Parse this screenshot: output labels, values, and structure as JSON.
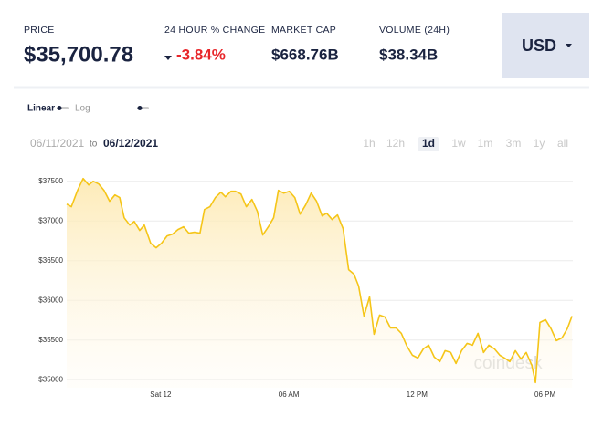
{
  "header": {
    "stats": [
      {
        "label": "PRICE",
        "value": "$35,700.78"
      },
      {
        "label": "24 HOUR % CHANGE",
        "value": "-3.84%"
      },
      {
        "label": "MARKET CAP",
        "value": "$668.76B"
      },
      {
        "label": "VOLUME (24H)",
        "value": "$38.34B"
      }
    ],
    "currency": "USD"
  },
  "controls": {
    "scales": [
      {
        "label": "Linear",
        "active": true
      },
      {
        "label": "Log",
        "active": false
      }
    ],
    "date_from": "06/11/2021",
    "date_sep": "to",
    "date_to": "06/12/2021",
    "ranges": [
      {
        "label": "1h",
        "active": false
      },
      {
        "label": "12h",
        "active": false
      },
      {
        "label": "1d",
        "active": true
      },
      {
        "label": "1w",
        "active": false
      },
      {
        "label": "1m",
        "active": false
      },
      {
        "label": "3m",
        "active": false
      },
      {
        "label": "1y",
        "active": false
      },
      {
        "label": "all",
        "active": false
      }
    ]
  },
  "chart_data": {
    "type": "line",
    "x": [
      -4.4,
      -4.18,
      -3.89,
      -3.63,
      -3.37,
      -3.16,
      -2.9,
      -2.65,
      -2.39,
      -2.14,
      -1.92,
      -1.71,
      -1.45,
      -1.24,
      -0.98,
      -0.77,
      -0.47,
      -0.21,
      0.04,
      0.3,
      0.56,
      0.81,
      1.07,
      1.32,
      1.58,
      1.84,
      2.05,
      2.31,
      2.56,
      2.82,
      3.03,
      3.29,
      3.5,
      3.76,
      4.01,
      4.27,
      4.53,
      4.78,
      5.04,
      5.29,
      5.51,
      5.76,
      6.02,
      6.28,
      6.53,
      6.79,
      7.05,
      7.3,
      7.56,
      7.77,
      8.03,
      8.28,
      8.54,
      8.8,
      9.05,
      9.27,
      9.52,
      9.78,
      9.99,
      10.25,
      10.5,
      10.76,
      11.02,
      11.27,
      11.53,
      11.79,
      12.04,
      12.3,
      12.55,
      12.81,
      13.07,
      13.32,
      13.58,
      13.83,
      14.09,
      14.35,
      14.6,
      14.86,
      15.12,
      15.37,
      15.63,
      15.88,
      16.1,
      16.35,
      16.61,
      16.87,
      17.12,
      17.38,
      17.55,
      17.76,
      18.02,
      18.28,
      18.53,
      18.79,
      19.04,
      19.26
    ],
    "series": [
      {
        "color": "#f5c518",
        "values": [
          37213,
          37179,
          37385,
          37534,
          37454,
          37500,
          37466,
          37385,
          37248,
          37328,
          37294,
          37041,
          36949,
          36995,
          36881,
          36949,
          36720,
          36663,
          36720,
          36812,
          36835,
          36892,
          36927,
          36846,
          36858,
          36846,
          37144,
          37179,
          37294,
          37362,
          37305,
          37374,
          37374,
          37339,
          37179,
          37271,
          37121,
          36823,
          36927,
          37041,
          37385,
          37351,
          37374,
          37294,
          37087,
          37202,
          37351,
          37248,
          37064,
          37098,
          37018,
          37076,
          36904,
          36387,
          36330,
          36181,
          35802,
          36043,
          35573,
          35814,
          35791,
          35653,
          35653,
          35585,
          35424,
          35309,
          35275,
          35390,
          35435,
          35286,
          35229,
          35367,
          35344,
          35206,
          35367,
          35458,
          35435,
          35585,
          35344,
          35435,
          35390,
          35309,
          35275,
          35229,
          35367,
          35263,
          35344,
          35183,
          34965,
          35722,
          35757,
          35642,
          35493,
          35527,
          35642,
          35802
        ]
      }
    ],
    "xlim": [
      -4.4,
      19.3
    ],
    "xticks": [
      {
        "value": 0,
        "label": "Sat 12"
      },
      {
        "value": 6,
        "label": "06 AM"
      },
      {
        "value": 12,
        "label": "12 PM"
      },
      {
        "value": 18,
        "label": "06 PM"
      }
    ],
    "ylim": [
      34900,
      37600
    ],
    "yticks": [
      {
        "value": 35000,
        "label": "$35000"
      },
      {
        "value": 35500,
        "label": "$35500"
      },
      {
        "value": 36000,
        "label": "$36000"
      },
      {
        "value": 36500,
        "label": "$36500"
      },
      {
        "value": 37000,
        "label": "$37000"
      },
      {
        "value": 37500,
        "label": "$37500"
      }
    ],
    "grid": true,
    "watermark": "coindesk"
  }
}
